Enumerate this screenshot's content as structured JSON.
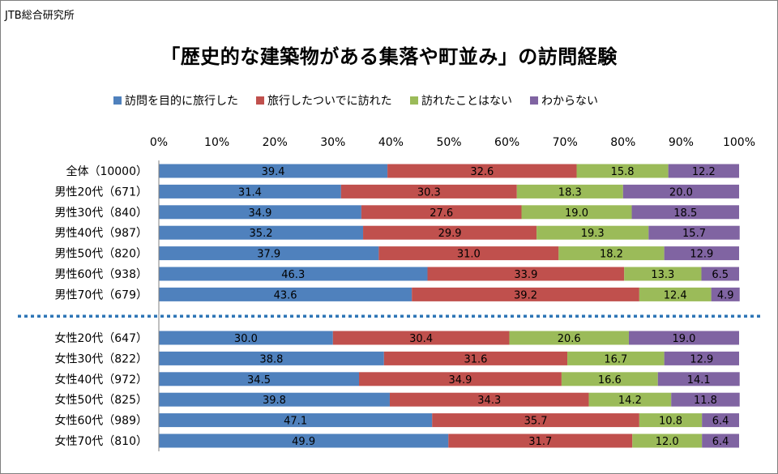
{
  "source": "JTB総合研究所",
  "title": "「歴史的な建築物がある集落や町並み」の訪問経験",
  "chart_data": {
    "type": "bar",
    "orientation": "horizontal",
    "stacked": "percent",
    "xlim": [
      0,
      100
    ],
    "x_ticks": [
      "0%",
      "10%",
      "20%",
      "30%",
      "40%",
      "50%",
      "60%",
      "70%",
      "80%",
      "90%",
      "100%"
    ],
    "grid": false,
    "legend_position": "top",
    "categories": [
      "全体（10000）",
      "男性20代（671）",
      "男性30代（840）",
      "男性40代（987）",
      "男性50代（820）",
      "男性60代（938）",
      "男性70代（679）",
      "女性20代（647）",
      "女性30代（822）",
      "女性40代（972）",
      "女性50代（825）",
      "女性60代（989）",
      "女性70代（810）"
    ],
    "group_separator_after_index": 6,
    "series": [
      {
        "name": "訪問を目的に旅行した",
        "color": "#4f81bd",
        "values": [
          39.4,
          31.4,
          34.9,
          35.2,
          37.9,
          46.3,
          43.6,
          30.0,
          38.8,
          34.5,
          39.8,
          47.1,
          49.9
        ],
        "labels": [
          "39.4",
          "31.4",
          "34.9",
          "35.2",
          "37.9",
          "46.3",
          "43.6",
          "30.0",
          "38.8",
          "34.5",
          "39.8",
          "47.1",
          "49.9"
        ]
      },
      {
        "name": "旅行したついでに訪れた",
        "color": "#c0504d",
        "values": [
          32.6,
          30.3,
          27.6,
          29.9,
          31.0,
          33.9,
          39.2,
          30.4,
          31.6,
          34.9,
          34.3,
          35.7,
          31.7
        ],
        "labels": [
          "32.6",
          "30.3",
          "27.6",
          "29.9",
          "31.0",
          "33.9",
          "39.2",
          "30.4",
          "31.6",
          "34.9",
          "34.3",
          "35.7",
          "31.7"
        ]
      },
      {
        "name": "訪れたことはない",
        "color": "#9bbb59",
        "values": [
          15.8,
          18.3,
          19.0,
          19.3,
          18.2,
          13.3,
          12.4,
          20.6,
          16.7,
          16.6,
          14.2,
          10.8,
          12.0
        ],
        "labels": [
          "15.8",
          "18.3",
          "19.0",
          "19.3",
          "18.2",
          "13.3",
          "12.4",
          "20.6",
          "16.7",
          "16.6",
          "14.2",
          "10.8",
          "12.0"
        ]
      },
      {
        "name": "わからない",
        "color": "#8064a2",
        "values": [
          12.2,
          20.0,
          18.5,
          15.7,
          12.9,
          6.5,
          4.9,
          19.0,
          12.9,
          14.1,
          11.8,
          6.4,
          6.4
        ],
        "labels": [
          "12.2",
          "20.0",
          "18.5",
          "15.7",
          "12.9",
          "6.5",
          "4.9",
          "19.0",
          "12.9",
          "14.1",
          "11.8",
          "6.4",
          "6.4"
        ]
      }
    ],
    "separator_color": "#2e75b6"
  }
}
